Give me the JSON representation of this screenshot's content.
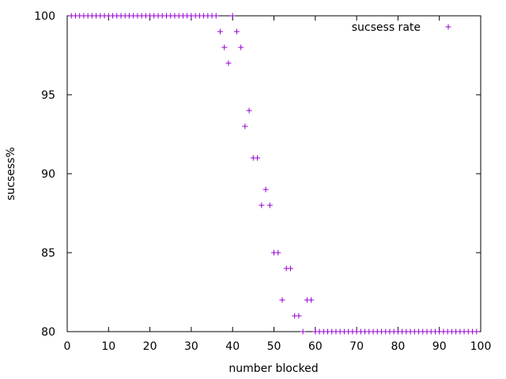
{
  "chart_data": {
    "type": "scatter",
    "xlabel": "number blocked",
    "ylabel": "sucsess%",
    "xlim": [
      0,
      100
    ],
    "ylim": [
      80,
      100
    ],
    "xticks": [
      0,
      10,
      20,
      30,
      40,
      50,
      60,
      70,
      80,
      90,
      100
    ],
    "yticks": [
      80,
      85,
      90,
      95,
      100
    ],
    "legend_position": "top-right",
    "grid": false,
    "marker": "plus",
    "color": "#9400d3",
    "series": [
      {
        "name": "sucsess rate",
        "points": [
          [
            1,
            100
          ],
          [
            2,
            100
          ],
          [
            3,
            100
          ],
          [
            4,
            100
          ],
          [
            5,
            100
          ],
          [
            6,
            100
          ],
          [
            7,
            100
          ],
          [
            8,
            100
          ],
          [
            9,
            100
          ],
          [
            10,
            100
          ],
          [
            11,
            100
          ],
          [
            12,
            100
          ],
          [
            13,
            100
          ],
          [
            14,
            100
          ],
          [
            15,
            100
          ],
          [
            16,
            100
          ],
          [
            17,
            100
          ],
          [
            18,
            100
          ],
          [
            19,
            100
          ],
          [
            20,
            100
          ],
          [
            21,
            100
          ],
          [
            22,
            100
          ],
          [
            23,
            100
          ],
          [
            24,
            100
          ],
          [
            25,
            100
          ],
          [
            26,
            100
          ],
          [
            27,
            100
          ],
          [
            28,
            100
          ],
          [
            29,
            100
          ],
          [
            30,
            100
          ],
          [
            31,
            100
          ],
          [
            32,
            100
          ],
          [
            33,
            100
          ],
          [
            34,
            100
          ],
          [
            35,
            100
          ],
          [
            36,
            100
          ],
          [
            37,
            99
          ],
          [
            38,
            98
          ],
          [
            39,
            97
          ],
          [
            40,
            100
          ],
          [
            41,
            99
          ],
          [
            42,
            98
          ],
          [
            43,
            93
          ],
          [
            44,
            94
          ],
          [
            45,
            91
          ],
          [
            46,
            91
          ],
          [
            47,
            88
          ],
          [
            48,
            89
          ],
          [
            49,
            88
          ],
          [
            50,
            85
          ],
          [
            51,
            85
          ],
          [
            52,
            82
          ],
          [
            53,
            84
          ],
          [
            54,
            84
          ],
          [
            55,
            81
          ],
          [
            56,
            81
          ],
          [
            57,
            80
          ],
          [
            58,
            82
          ],
          [
            59,
            82
          ],
          [
            60,
            80
          ],
          [
            61,
            80
          ],
          [
            62,
            80
          ],
          [
            63,
            80
          ],
          [
            64,
            80
          ],
          [
            65,
            80
          ],
          [
            66,
            80
          ],
          [
            67,
            80
          ],
          [
            68,
            80
          ],
          [
            69,
            80
          ],
          [
            70,
            80
          ],
          [
            71,
            80
          ],
          [
            72,
            80
          ],
          [
            73,
            80
          ],
          [
            74,
            80
          ],
          [
            75,
            80
          ],
          [
            76,
            80
          ],
          [
            77,
            80
          ],
          [
            78,
            80
          ],
          [
            79,
            80
          ],
          [
            80,
            80
          ],
          [
            81,
            80
          ],
          [
            82,
            80
          ],
          [
            83,
            80
          ],
          [
            84,
            80
          ],
          [
            85,
            80
          ],
          [
            86,
            80
          ],
          [
            87,
            80
          ],
          [
            88,
            80
          ],
          [
            89,
            80
          ],
          [
            90,
            80
          ],
          [
            91,
            80
          ],
          [
            92,
            80
          ],
          [
            93,
            80
          ],
          [
            94,
            80
          ],
          [
            95,
            80
          ],
          [
            96,
            80
          ],
          [
            97,
            80
          ],
          [
            98,
            80
          ],
          [
            99,
            80
          ]
        ]
      }
    ]
  }
}
